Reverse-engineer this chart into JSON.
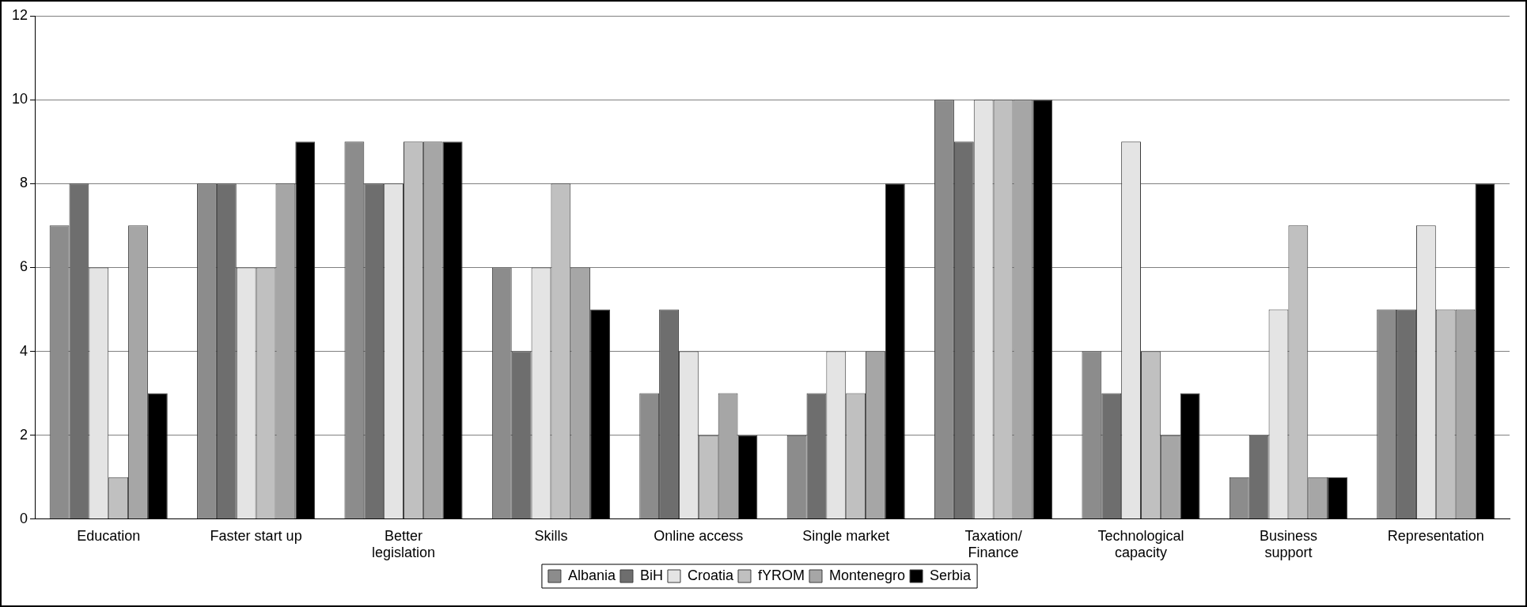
{
  "chart_data": {
    "type": "bar",
    "categories": [
      "Education",
      "Faster start up",
      "Better legislation",
      "Skills",
      "Online access",
      "Single market",
      "Taxation/Finance",
      "Technological capacity",
      "Business support",
      "Representation"
    ],
    "series": [
      {
        "name": "Albania",
        "color": "#8c8c8c",
        "values": [
          7,
          8,
          9,
          6,
          3,
          2,
          10,
          4,
          1,
          5
        ]
      },
      {
        "name": "BiH",
        "color": "#6e6e6e",
        "values": [
          8,
          8,
          8,
          4,
          5,
          3,
          9,
          3,
          2,
          5
        ]
      },
      {
        "name": "Croatia",
        "color": "#e4e4e4",
        "values": [
          6,
          6,
          8,
          6,
          4,
          4,
          10,
          9,
          5,
          7
        ]
      },
      {
        "name": "fYROM",
        "color": "#c0c0c0",
        "values": [
          1,
          6,
          9,
          8,
          2,
          3,
          10,
          4,
          7,
          5
        ]
      },
      {
        "name": "Montenegro",
        "color": "#a6a6a6",
        "values": [
          7,
          8,
          9,
          6,
          3,
          4,
          10,
          2,
          1,
          5
        ]
      },
      {
        "name": "Serbia",
        "color": "#000000",
        "values": [
          3,
          9,
          9,
          5,
          2,
          8,
          10,
          3,
          1,
          8
        ]
      }
    ],
    "ylim": [
      0,
      12
    ],
    "yticks": [
      0,
      2,
      4,
      6,
      8,
      10,
      12
    ],
    "grid": "y",
    "legend": "bottom"
  }
}
